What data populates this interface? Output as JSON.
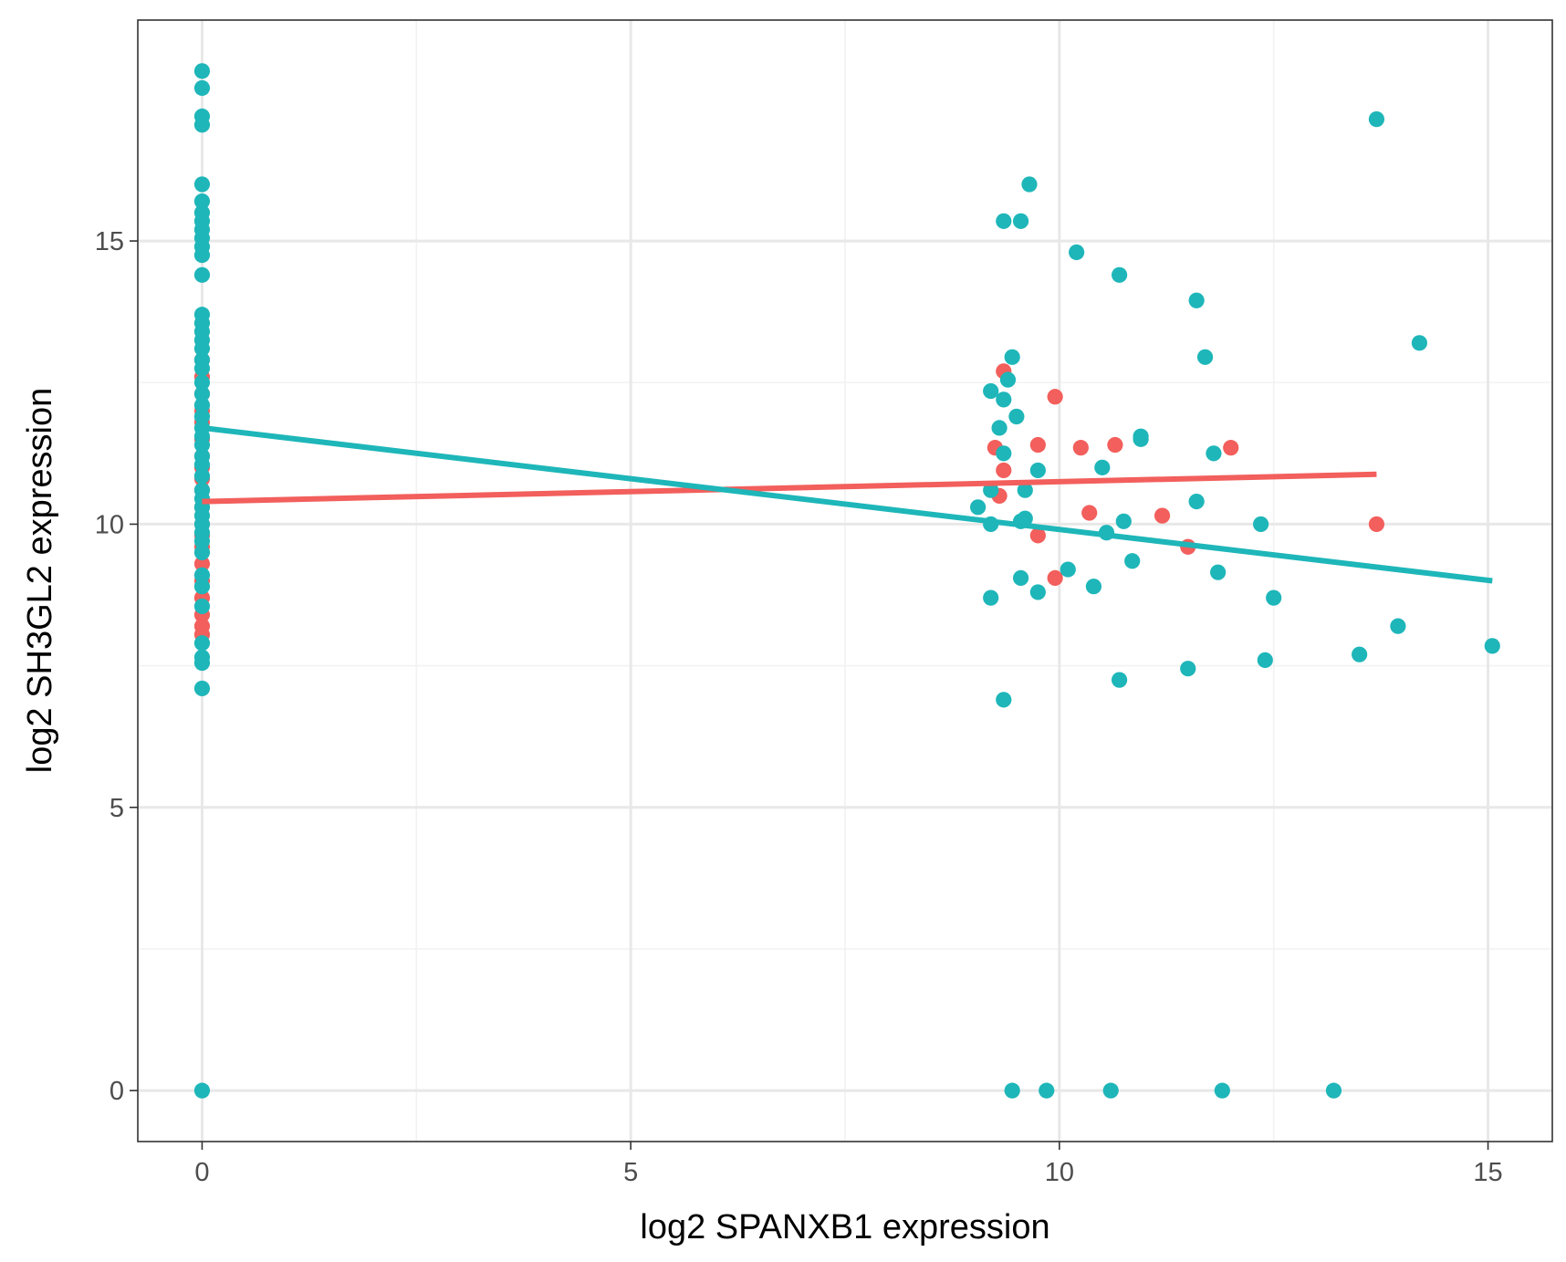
{
  "chart_data": {
    "type": "scatter",
    "title": "",
    "xlabel": "log2 SPANXB1 expression",
    "ylabel": "log2 SH3GL2 expression",
    "xlim": [
      -0.75,
      15.75
    ],
    "ylim": [
      -0.9,
      18.9
    ],
    "x_ticks": [
      0,
      5,
      10,
      15
    ],
    "x_tick_labels": [
      "0",
      "5",
      "10",
      "15"
    ],
    "y_ticks": [
      0,
      5,
      10,
      15
    ],
    "y_tick_labels": [
      "0",
      "5",
      "10",
      "15"
    ],
    "grid": true,
    "legend": "none",
    "colors": {
      "teal": "#1eb6b9",
      "red": "#f25f5c",
      "grid_major": "#e8e8e8",
      "grid_minor": "#f2f2f2",
      "panel_border": "#333333"
    },
    "series": [
      {
        "color": "#f25f5c",
        "points": [
          [
            0,
            12.9
          ],
          [
            0,
            12.6
          ],
          [
            0,
            12.3
          ],
          [
            0,
            12.0
          ],
          [
            0,
            11.8
          ],
          [
            0,
            11.5
          ],
          [
            0,
            11.2
          ],
          [
            0,
            11.0
          ],
          [
            0,
            10.8
          ],
          [
            0,
            10.6
          ],
          [
            0,
            10.3
          ],
          [
            0,
            10.0
          ],
          [
            0,
            9.8
          ],
          [
            0,
            9.6
          ],
          [
            0,
            9.3
          ],
          [
            0,
            9.0
          ],
          [
            0,
            8.7
          ],
          [
            0,
            8.4
          ],
          [
            0,
            8.2
          ],
          [
            0,
            8.05
          ],
          [
            9.35,
            12.7
          ],
          [
            9.95,
            12.25
          ],
          [
            9.25,
            11.35
          ],
          [
            9.75,
            11.4
          ],
          [
            10.25,
            11.35
          ],
          [
            10.65,
            11.4
          ],
          [
            12.0,
            11.35
          ],
          [
            9.35,
            10.95
          ],
          [
            9.3,
            10.5
          ],
          [
            10.35,
            10.2
          ],
          [
            11.2,
            10.15
          ],
          [
            9.75,
            9.8
          ],
          [
            11.5,
            9.6
          ],
          [
            9.95,
            9.05
          ],
          [
            13.7,
            10.0
          ]
        ],
        "fit": [
          [
            0,
            10.4
          ],
          [
            13.7,
            10.88
          ]
        ]
      },
      {
        "color": "#1eb6b9",
        "points": [
          [
            0,
            18.0
          ],
          [
            0,
            17.7
          ],
          [
            0,
            17.2
          ],
          [
            0,
            17.05
          ],
          [
            0,
            16.0
          ],
          [
            0,
            15.7
          ],
          [
            0,
            15.5
          ],
          [
            0,
            15.35
          ],
          [
            0,
            15.2
          ],
          [
            0,
            15.05
          ],
          [
            0,
            14.9
          ],
          [
            0,
            14.75
          ],
          [
            0,
            14.4
          ],
          [
            0,
            13.7
          ],
          [
            0,
            13.55
          ],
          [
            0,
            13.4
          ],
          [
            0,
            13.25
          ],
          [
            0,
            13.1
          ],
          [
            0,
            12.9
          ],
          [
            0,
            12.75
          ],
          [
            0,
            12.5
          ],
          [
            0,
            12.3
          ],
          [
            0,
            12.1
          ],
          [
            0,
            11.9
          ],
          [
            0,
            11.7
          ],
          [
            0,
            11.55
          ],
          [
            0,
            11.4
          ],
          [
            0,
            11.2
          ],
          [
            0,
            11.05
          ],
          [
            0,
            10.85
          ],
          [
            0,
            10.6
          ],
          [
            0,
            10.45
          ],
          [
            0,
            10.3
          ],
          [
            0,
            10.15
          ],
          [
            0,
            10.0
          ],
          [
            0,
            9.85
          ],
          [
            0,
            9.7
          ],
          [
            0,
            9.5
          ],
          [
            0,
            9.1
          ],
          [
            0,
            8.9
          ],
          [
            0,
            8.55
          ],
          [
            0,
            7.9
          ],
          [
            0,
            7.65
          ],
          [
            0,
            7.55
          ],
          [
            0,
            7.1
          ],
          [
            0,
            0.0
          ],
          [
            13.7,
            17.15
          ],
          [
            9.65,
            16.0
          ],
          [
            9.35,
            15.35
          ],
          [
            9.55,
            15.35
          ],
          [
            10.2,
            14.8
          ],
          [
            10.7,
            14.4
          ],
          [
            11.6,
            13.95
          ],
          [
            14.2,
            13.2
          ],
          [
            9.45,
            12.95
          ],
          [
            11.7,
            12.95
          ],
          [
            9.2,
            12.35
          ],
          [
            9.4,
            12.55
          ],
          [
            9.35,
            12.2
          ],
          [
            9.5,
            11.9
          ],
          [
            9.3,
            11.7
          ],
          [
            10.95,
            11.55
          ],
          [
            10.95,
            11.5
          ],
          [
            11.8,
            11.25
          ],
          [
            9.35,
            11.25
          ],
          [
            10.5,
            11.0
          ],
          [
            9.75,
            10.95
          ],
          [
            9.6,
            10.6
          ],
          [
            9.2,
            10.6
          ],
          [
            11.6,
            10.4
          ],
          [
            9.05,
            10.3
          ],
          [
            12.35,
            10.0
          ],
          [
            9.2,
            10.0
          ],
          [
            9.55,
            10.05
          ],
          [
            9.6,
            10.1
          ],
          [
            10.75,
            10.05
          ],
          [
            10.55,
            9.85
          ],
          [
            10.85,
            9.35
          ],
          [
            10.1,
            9.2
          ],
          [
            11.85,
            9.15
          ],
          [
            9.55,
            9.05
          ],
          [
            10.4,
            8.9
          ],
          [
            9.75,
            8.8
          ],
          [
            9.2,
            8.7
          ],
          [
            12.5,
            8.7
          ],
          [
            13.95,
            8.2
          ],
          [
            15.05,
            7.85
          ],
          [
            13.5,
            7.7
          ],
          [
            12.4,
            7.6
          ],
          [
            11.5,
            7.45
          ],
          [
            10.7,
            7.25
          ],
          [
            9.35,
            6.9
          ],
          [
            9.45,
            0.0
          ],
          [
            9.85,
            0.0
          ],
          [
            10.6,
            0.0
          ],
          [
            11.9,
            0.0
          ],
          [
            13.2,
            0.0
          ]
        ],
        "fit": [
          [
            0,
            11.7
          ],
          [
            15.05,
            9.0
          ]
        ]
      }
    ]
  }
}
